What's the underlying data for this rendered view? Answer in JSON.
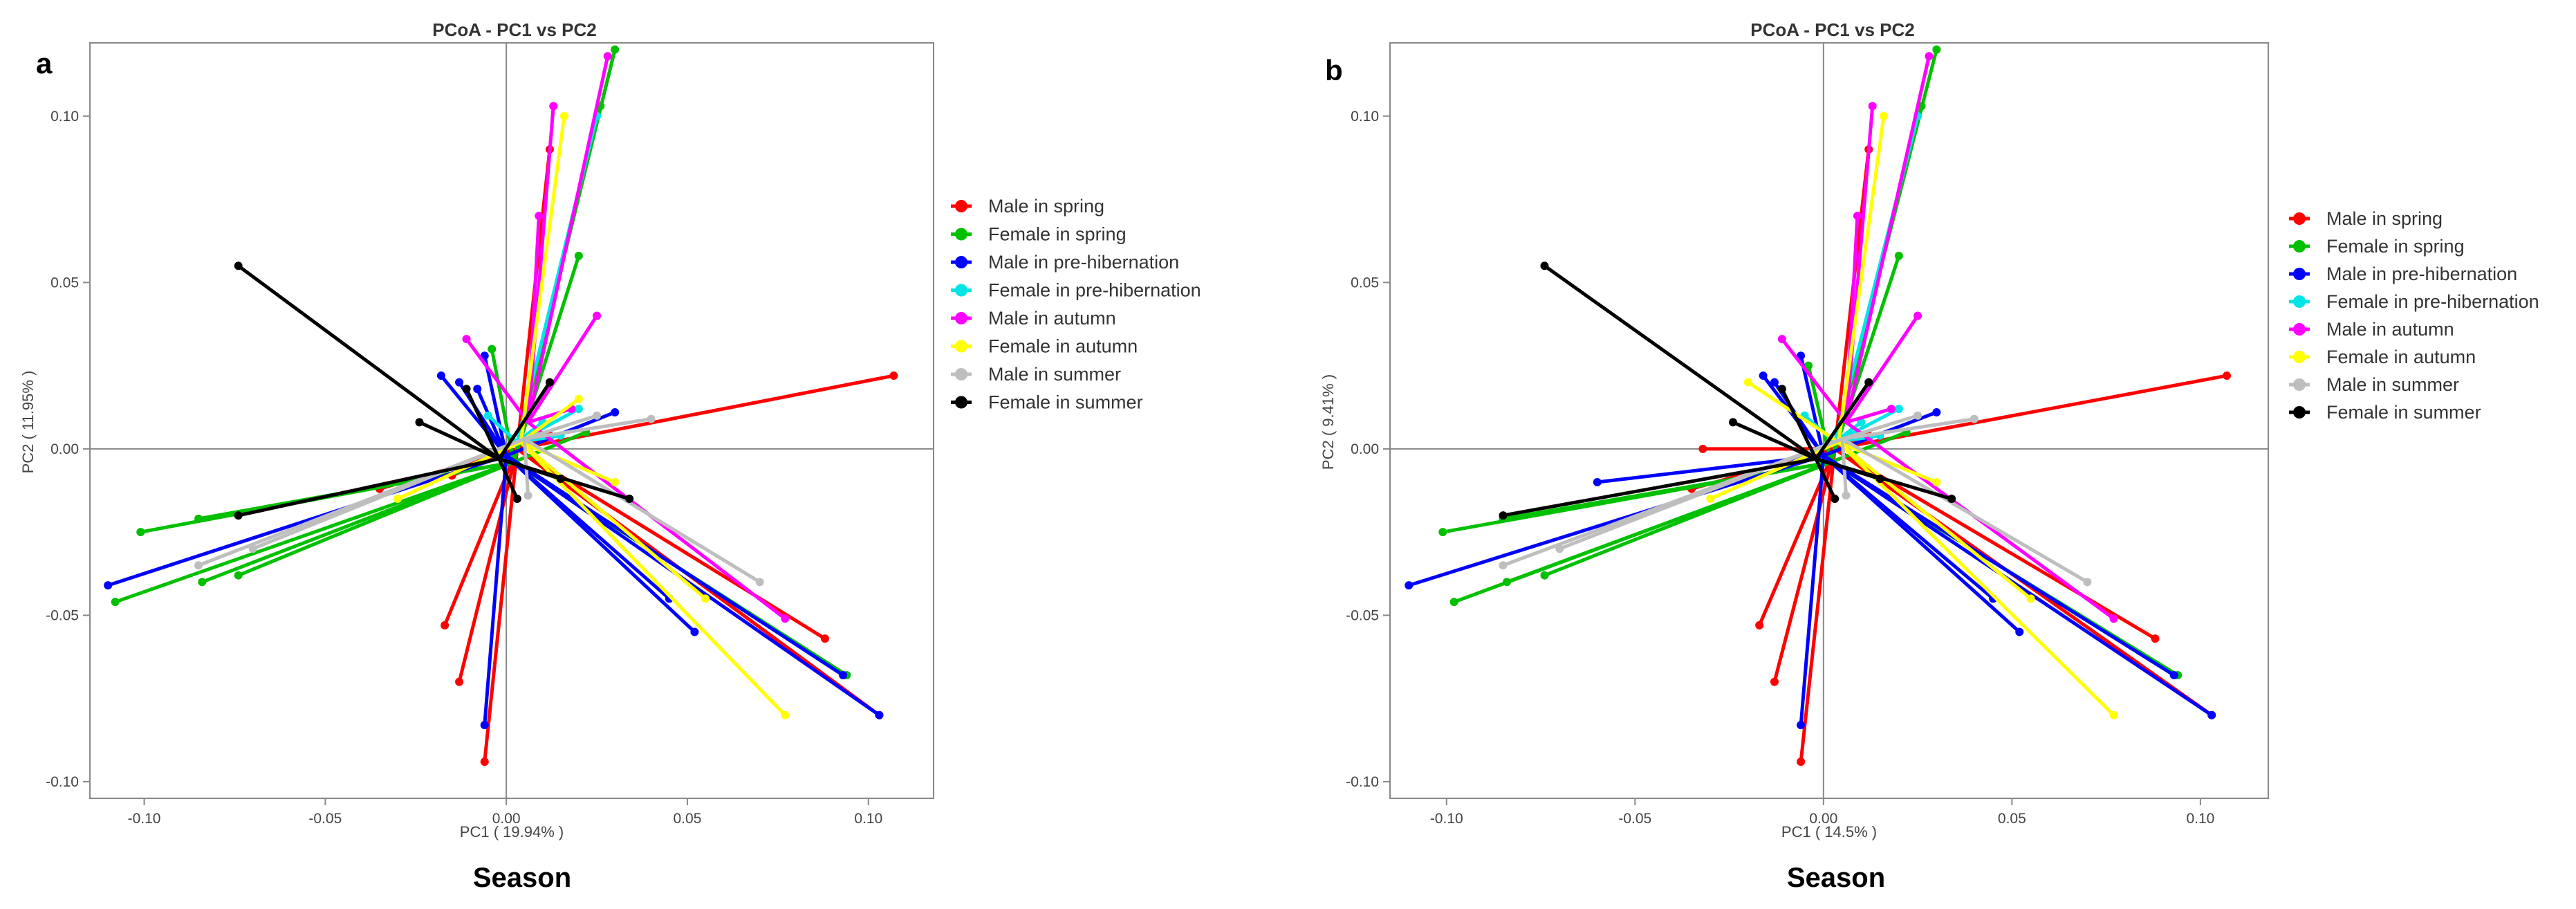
{
  "chart_data": [
    {
      "panel": "a",
      "type": "scatter",
      "title": "PCoA - PC1 vs PC2",
      "xlabel": "PC1 ( 19.94% )",
      "ylabel": "PC2 ( 11.95% )",
      "footer": "Season",
      "xlim": [
        -0.115,
        0.118
      ],
      "ylim": [
        -0.105,
        0.122
      ],
      "xticks": [
        -0.1,
        -0.05,
        0.0,
        0.05,
        0.1
      ],
      "yticks": [
        -0.1,
        -0.05,
        0.0,
        0.05,
        0.1
      ],
      "xtick_labels": [
        "-0.10",
        "-0.05",
        "0.00",
        "0.05",
        "0.10"
      ],
      "ytick_labels": [
        "-0.10",
        "-0.05",
        "0.00",
        "0.05",
        "0.10"
      ],
      "reference_lines": {
        "x": 0,
        "y": 0
      },
      "legend": "right",
      "series": [
        {
          "name": "Male in spring",
          "color": "#ff0000",
          "centroid": [
            0.003,
            0.0
          ],
          "points": [
            [
              0.107,
              0.022
            ],
            [
              -0.017,
              -0.053
            ],
            [
              -0.013,
              -0.07
            ],
            [
              -0.006,
              -0.094
            ],
            [
              0.088,
              -0.057
            ],
            [
              0.103,
              -0.08
            ],
            [
              -0.015,
              -0.008
            ],
            [
              0.012,
              0.004
            ],
            [
              -0.035,
              -0.012
            ],
            [
              0.012,
              0.09
            ]
          ]
        },
        {
          "name": "Female in spring",
          "color": "#00c000",
          "centroid": [
            0.002,
            -0.004
          ],
          "points": [
            [
              -0.108,
              -0.046
            ],
            [
              -0.101,
              -0.025
            ],
            [
              -0.085,
              -0.021
            ],
            [
              -0.084,
              -0.04
            ],
            [
              -0.074,
              -0.038
            ],
            [
              0.03,
              0.12
            ],
            [
              0.02,
              0.058
            ],
            [
              0.094,
              -0.068
            ],
            [
              0.022,
              0.005
            ],
            [
              -0.004,
              0.03
            ],
            [
              0.026,
              0.103
            ]
          ]
        },
        {
          "name": "Male in pre-hibernation",
          "color": "#0000ff",
          "centroid": [
            0.0,
            -0.002
          ],
          "points": [
            [
              -0.11,
              -0.041
            ],
            [
              -0.018,
              0.022
            ],
            [
              -0.013,
              0.02
            ],
            [
              -0.006,
              0.028
            ],
            [
              -0.006,
              -0.083
            ],
            [
              0.052,
              -0.055
            ],
            [
              0.093,
              -0.068
            ],
            [
              0.103,
              -0.08
            ],
            [
              0.03,
              0.011
            ],
            [
              -0.008,
              0.018
            ],
            [
              0.045,
              -0.045
            ]
          ]
        },
        {
          "name": "Female in pre-hibernation",
          "color": "#00e5e5",
          "centroid": [
            0.003,
            0.002
          ],
          "points": [
            [
              0.02,
              0.012
            ],
            [
              0.015,
              0.004
            ],
            [
              -0.005,
              0.01
            ],
            [
              0.01,
              0.008
            ],
            [
              0.025,
              0.1
            ]
          ]
        },
        {
          "name": "Male in autumn",
          "color": "#ff00ff",
          "centroid": [
            0.006,
            0.008
          ],
          "points": [
            [
              0.013,
              0.103
            ],
            [
              -0.011,
              0.033
            ],
            [
              0.025,
              0.04
            ],
            [
              0.077,
              -0.051
            ],
            [
              0.028,
              0.118
            ],
            [
              0.018,
              0.012
            ],
            [
              0.009,
              0.07
            ]
          ]
        },
        {
          "name": "Female in autumn",
          "color": "#ffff00",
          "centroid": [
            0.004,
            0.002
          ],
          "points": [
            [
              0.077,
              -0.08
            ],
            [
              0.016,
              0.1
            ],
            [
              0.02,
              0.015
            ],
            [
              0.03,
              -0.01
            ],
            [
              -0.03,
              -0.015
            ],
            [
              0.055,
              -0.045
            ]
          ]
        },
        {
          "name": "Male in summer",
          "color": "#bebebe",
          "centroid": [
            0.005,
            0.003
          ],
          "points": [
            [
              0.04,
              0.009
            ],
            [
              0.025,
              0.01
            ],
            [
              -0.07,
              -0.03
            ],
            [
              0.006,
              -0.014
            ],
            [
              0.07,
              -0.04
            ],
            [
              -0.085,
              -0.035
            ]
          ]
        },
        {
          "name": "Female in summer",
          "color": "#000000",
          "centroid": [
            -0.002,
            -0.003
          ],
          "points": [
            [
              -0.074,
              0.055
            ],
            [
              -0.011,
              0.018
            ],
            [
              -0.024,
              0.008
            ],
            [
              0.015,
              -0.009
            ],
            [
              0.034,
              -0.015
            ],
            [
              0.003,
              -0.015
            ],
            [
              -0.074,
              -0.02
            ],
            [
              0.012,
              0.02
            ]
          ]
        }
      ]
    },
    {
      "panel": "b",
      "type": "scatter",
      "title": "PCoA - PC1 vs PC2",
      "xlabel": "PC1 ( 14.5% )",
      "ylabel": "PC2 ( 9.41% )",
      "footer": "Season",
      "xlim": [
        -0.115,
        0.118
      ],
      "ylim": [
        -0.105,
        0.122
      ],
      "xticks": [
        -0.1,
        -0.05,
        0.0,
        0.05,
        0.1
      ],
      "yticks": [
        -0.1,
        -0.05,
        0.0,
        0.05,
        0.1
      ],
      "xtick_labels": [
        "-0.10",
        "-0.05",
        "0.00",
        "0.05",
        "0.10"
      ],
      "ytick_labels": [
        "-0.10",
        "-0.05",
        "0.00",
        "0.05",
        "0.10"
      ],
      "reference_lines": {
        "x": 0,
        "y": 0
      },
      "legend": "right",
      "series": [
        {
          "name": "Male in spring",
          "color": "#ff0000",
          "centroid": [
            0.003,
            0.0
          ],
          "points": [
            [
              0.107,
              0.022
            ],
            [
              -0.017,
              -0.053
            ],
            [
              -0.013,
              -0.07
            ],
            [
              -0.006,
              -0.094
            ],
            [
              0.088,
              -0.057
            ],
            [
              0.103,
              -0.08
            ],
            [
              -0.032,
              0.0
            ],
            [
              0.012,
              0.004
            ],
            [
              -0.035,
              -0.012
            ],
            [
              0.012,
              0.09
            ]
          ]
        },
        {
          "name": "Female in spring",
          "color": "#00c000",
          "centroid": [
            0.002,
            -0.004
          ],
          "points": [
            [
              -0.098,
              -0.046
            ],
            [
              -0.101,
              -0.025
            ],
            [
              -0.085,
              -0.021
            ],
            [
              -0.084,
              -0.04
            ],
            [
              -0.074,
              -0.038
            ],
            [
              0.03,
              0.12
            ],
            [
              0.02,
              0.058
            ],
            [
              0.094,
              -0.068
            ],
            [
              -0.004,
              0.025
            ],
            [
              0.022,
              0.005
            ],
            [
              0.026,
              0.103
            ]
          ]
        },
        {
          "name": "Male in pre-hibernation",
          "color": "#0000ff",
          "centroid": [
            0.0,
            -0.002
          ],
          "points": [
            [
              -0.11,
              -0.041
            ],
            [
              -0.016,
              0.022
            ],
            [
              -0.013,
              0.02
            ],
            [
              -0.006,
              0.028
            ],
            [
              -0.006,
              -0.083
            ],
            [
              0.052,
              -0.055
            ],
            [
              0.093,
              -0.068
            ],
            [
              0.103,
              -0.08
            ],
            [
              0.03,
              0.011
            ],
            [
              -0.06,
              -0.01
            ],
            [
              0.045,
              -0.045
            ]
          ]
        },
        {
          "name": "Female in pre-hibernation",
          "color": "#00e5e5",
          "centroid": [
            0.003,
            0.002
          ],
          "points": [
            [
              0.02,
              0.012
            ],
            [
              0.015,
              0.004
            ],
            [
              -0.005,
              0.01
            ],
            [
              0.01,
              0.008
            ],
            [
              0.025,
              0.1
            ]
          ]
        },
        {
          "name": "Male in autumn",
          "color": "#ff00ff",
          "centroid": [
            0.006,
            0.008
          ],
          "points": [
            [
              0.013,
              0.103
            ],
            [
              -0.011,
              0.033
            ],
            [
              0.025,
              0.04
            ],
            [
              0.077,
              -0.051
            ],
            [
              0.028,
              0.118
            ],
            [
              0.018,
              0.012
            ],
            [
              0.009,
              0.07
            ]
          ]
        },
        {
          "name": "Female in autumn",
          "color": "#ffff00",
          "centroid": [
            0.004,
            0.002
          ],
          "points": [
            [
              0.077,
              -0.08
            ],
            [
              0.016,
              0.1
            ],
            [
              -0.02,
              0.02
            ],
            [
              0.03,
              -0.01
            ],
            [
              -0.03,
              -0.015
            ],
            [
              0.055,
              -0.045
            ]
          ]
        },
        {
          "name": "Male in summer",
          "color": "#bebebe",
          "centroid": [
            0.005,
            0.003
          ],
          "points": [
            [
              0.04,
              0.009
            ],
            [
              0.025,
              0.01
            ],
            [
              -0.07,
              -0.03
            ],
            [
              0.006,
              -0.014
            ],
            [
              0.07,
              -0.04
            ],
            [
              -0.085,
              -0.035
            ]
          ]
        },
        {
          "name": "Female in summer",
          "color": "#000000",
          "centroid": [
            -0.002,
            -0.003
          ],
          "points": [
            [
              -0.074,
              0.055
            ],
            [
              -0.011,
              0.018
            ],
            [
              -0.024,
              0.008
            ],
            [
              0.015,
              -0.009
            ],
            [
              0.034,
              -0.015
            ],
            [
              0.003,
              -0.015
            ],
            [
              -0.085,
              -0.02
            ],
            [
              0.012,
              0.02
            ]
          ]
        }
      ]
    }
  ]
}
